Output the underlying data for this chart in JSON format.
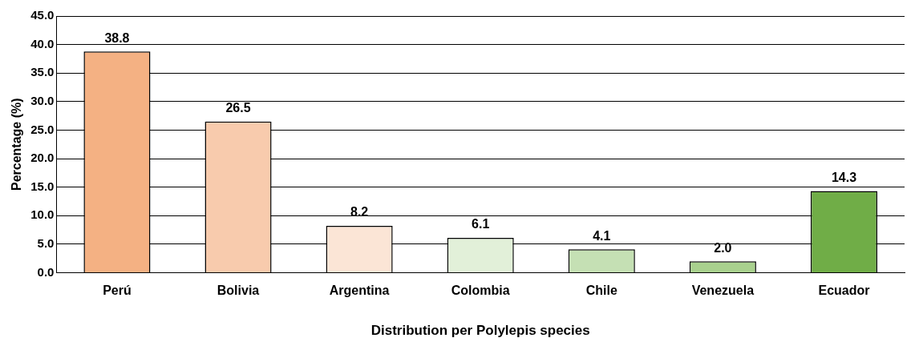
{
  "chart_data": {
    "type": "bar",
    "xlabel": "Distribution per Polylepis species",
    "ylabel": "Percentage (%)",
    "categories": [
      "Perú",
      "Bolivia",
      "Argentina",
      "Colombia",
      "Chile",
      "Venezuela",
      "Ecuador"
    ],
    "values": [
      38.8,
      26.5,
      8.2,
      6.1,
      4.1,
      2.0,
      14.3
    ],
    "colors": [
      "#f4b183",
      "#f8cbad",
      "#fbe5d6",
      "#e2f0d9",
      "#c5e0b4",
      "#a9d18e",
      "#70ad47"
    ],
    "value_labels": [
      "38.8",
      "26.5",
      "8.2",
      "6.1",
      "4.1",
      "2.0",
      "14.3"
    ],
    "ylim": [
      0,
      45
    ],
    "yticks": [
      {
        "value": 0,
        "label": "0.0"
      },
      {
        "value": 5,
        "label": "5.0"
      },
      {
        "value": 10,
        "label": "10.0"
      },
      {
        "value": 15,
        "label": "15.0"
      },
      {
        "value": 20,
        "label": "20.0"
      },
      {
        "value": 25,
        "label": "25.0"
      },
      {
        "value": 30,
        "label": "30.0"
      },
      {
        "value": 35,
        "label": "35.0"
      },
      {
        "value": 40,
        "label": "40.0"
      },
      {
        "value": 45,
        "label": "45.0"
      }
    ],
    "grid": "y",
    "legend": false
  }
}
